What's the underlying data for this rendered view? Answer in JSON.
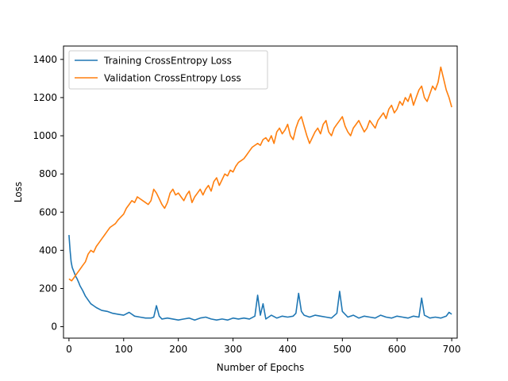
{
  "chart_data": {
    "type": "line",
    "title": "",
    "xlabel": "Number of Epochs",
    "ylabel": "Loss",
    "xlim": [
      -10,
      710
    ],
    "ylim": [
      -60,
      1470
    ],
    "xticks": [
      0,
      100,
      200,
      300,
      400,
      500,
      600,
      700
    ],
    "yticks": [
      0,
      200,
      400,
      600,
      800,
      1000,
      1200,
      1400
    ],
    "grid": false,
    "legend_position": "upper-left",
    "series": [
      {
        "name": "Training CrossEntropy Loss",
        "color": "#1f77b4",
        "points": [
          [
            0,
            480
          ],
          [
            2,
            400
          ],
          [
            4,
            340
          ],
          [
            6,
            310
          ],
          [
            8,
            295
          ],
          [
            10,
            280
          ],
          [
            12,
            265
          ],
          [
            15,
            250
          ],
          [
            18,
            230
          ],
          [
            20,
            215
          ],
          [
            25,
            190
          ],
          [
            30,
            160
          ],
          [
            35,
            140
          ],
          [
            40,
            120
          ],
          [
            45,
            110
          ],
          [
            50,
            100
          ],
          [
            60,
            85
          ],
          [
            70,
            80
          ],
          [
            80,
            70
          ],
          [
            90,
            65
          ],
          [
            100,
            60
          ],
          [
            110,
            75
          ],
          [
            120,
            55
          ],
          [
            130,
            50
          ],
          [
            140,
            45
          ],
          [
            150,
            45
          ],
          [
            155,
            50
          ],
          [
            160,
            110
          ],
          [
            165,
            55
          ],
          [
            170,
            40
          ],
          [
            180,
            45
          ],
          [
            190,
            40
          ],
          [
            200,
            35
          ],
          [
            210,
            40
          ],
          [
            220,
            45
          ],
          [
            230,
            35
          ],
          [
            240,
            45
          ],
          [
            250,
            50
          ],
          [
            260,
            40
          ],
          [
            270,
            35
          ],
          [
            280,
            40
          ],
          [
            290,
            35
          ],
          [
            300,
            45
          ],
          [
            310,
            40
          ],
          [
            320,
            45
          ],
          [
            330,
            40
          ],
          [
            340,
            55
          ],
          [
            345,
            165
          ],
          [
            350,
            60
          ],
          [
            355,
            120
          ],
          [
            360,
            40
          ],
          [
            370,
            60
          ],
          [
            380,
            45
          ],
          [
            390,
            55
          ],
          [
            400,
            50
          ],
          [
            410,
            55
          ],
          [
            415,
            70
          ],
          [
            420,
            175
          ],
          [
            425,
            80
          ],
          [
            430,
            60
          ],
          [
            440,
            50
          ],
          [
            450,
            60
          ],
          [
            460,
            55
          ],
          [
            470,
            50
          ],
          [
            480,
            45
          ],
          [
            490,
            70
          ],
          [
            495,
            185
          ],
          [
            500,
            80
          ],
          [
            510,
            50
          ],
          [
            520,
            60
          ],
          [
            530,
            45
          ],
          [
            540,
            55
          ],
          [
            550,
            50
          ],
          [
            560,
            45
          ],
          [
            570,
            60
          ],
          [
            580,
            50
          ],
          [
            590,
            45
          ],
          [
            600,
            55
          ],
          [
            610,
            50
          ],
          [
            620,
            45
          ],
          [
            630,
            55
          ],
          [
            640,
            50
          ],
          [
            645,
            150
          ],
          [
            650,
            60
          ],
          [
            660,
            45
          ],
          [
            670,
            50
          ],
          [
            680,
            45
          ],
          [
            690,
            55
          ],
          [
            695,
            75
          ],
          [
            700,
            65
          ]
        ]
      },
      {
        "name": "Validation CrossEntropy Loss",
        "color": "#ff7f0e",
        "points": [
          [
            0,
            250
          ],
          [
            5,
            240
          ],
          [
            10,
            260
          ],
          [
            15,
            280
          ],
          [
            20,
            300
          ],
          [
            25,
            320
          ],
          [
            30,
            340
          ],
          [
            35,
            380
          ],
          [
            40,
            400
          ],
          [
            45,
            390
          ],
          [
            50,
            420
          ],
          [
            55,
            440
          ],
          [
            60,
            460
          ],
          [
            65,
            480
          ],
          [
            70,
            500
          ],
          [
            75,
            520
          ],
          [
            80,
            530
          ],
          [
            85,
            540
          ],
          [
            90,
            560
          ],
          [
            95,
            575
          ],
          [
            100,
            590
          ],
          [
            105,
            620
          ],
          [
            110,
            640
          ],
          [
            115,
            660
          ],
          [
            120,
            650
          ],
          [
            125,
            680
          ],
          [
            130,
            670
          ],
          [
            135,
            660
          ],
          [
            140,
            650
          ],
          [
            145,
            640
          ],
          [
            150,
            660
          ],
          [
            155,
            720
          ],
          [
            160,
            700
          ],
          [
            165,
            670
          ],
          [
            170,
            640
          ],
          [
            175,
            620
          ],
          [
            180,
            650
          ],
          [
            185,
            700
          ],
          [
            190,
            720
          ],
          [
            195,
            690
          ],
          [
            200,
            700
          ],
          [
            205,
            680
          ],
          [
            210,
            660
          ],
          [
            215,
            690
          ],
          [
            220,
            710
          ],
          [
            225,
            650
          ],
          [
            230,
            680
          ],
          [
            235,
            700
          ],
          [
            240,
            720
          ],
          [
            245,
            690
          ],
          [
            250,
            720
          ],
          [
            255,
            740
          ],
          [
            260,
            710
          ],
          [
            265,
            760
          ],
          [
            270,
            780
          ],
          [
            275,
            740
          ],
          [
            280,
            770
          ],
          [
            285,
            800
          ],
          [
            290,
            790
          ],
          [
            295,
            820
          ],
          [
            300,
            810
          ],
          [
            305,
            840
          ],
          [
            310,
            860
          ],
          [
            315,
            870
          ],
          [
            320,
            880
          ],
          [
            325,
            900
          ],
          [
            330,
            920
          ],
          [
            335,
            940
          ],
          [
            340,
            950
          ],
          [
            345,
            960
          ],
          [
            350,
            950
          ],
          [
            355,
            980
          ],
          [
            360,
            990
          ],
          [
            365,
            970
          ],
          [
            370,
            1000
          ],
          [
            375,
            960
          ],
          [
            380,
            1020
          ],
          [
            385,
            1040
          ],
          [
            390,
            1010
          ],
          [
            395,
            1030
          ],
          [
            400,
            1060
          ],
          [
            405,
            1000
          ],
          [
            410,
            980
          ],
          [
            415,
            1040
          ],
          [
            420,
            1080
          ],
          [
            425,
            1100
          ],
          [
            430,
            1050
          ],
          [
            435,
            1000
          ],
          [
            440,
            960
          ],
          [
            445,
            990
          ],
          [
            450,
            1020
          ],
          [
            455,
            1040
          ],
          [
            460,
            1010
          ],
          [
            465,
            1060
          ],
          [
            470,
            1080
          ],
          [
            475,
            1020
          ],
          [
            480,
            1000
          ],
          [
            485,
            1040
          ],
          [
            490,
            1060
          ],
          [
            495,
            1080
          ],
          [
            500,
            1100
          ],
          [
            505,
            1050
          ],
          [
            510,
            1020
          ],
          [
            515,
            1000
          ],
          [
            520,
            1040
          ],
          [
            525,
            1060
          ],
          [
            530,
            1080
          ],
          [
            535,
            1050
          ],
          [
            540,
            1020
          ],
          [
            545,
            1040
          ],
          [
            550,
            1080
          ],
          [
            555,
            1060
          ],
          [
            560,
            1040
          ],
          [
            565,
            1080
          ],
          [
            570,
            1100
          ],
          [
            575,
            1120
          ],
          [
            580,
            1090
          ],
          [
            585,
            1140
          ],
          [
            590,
            1160
          ],
          [
            595,
            1120
          ],
          [
            600,
            1140
          ],
          [
            605,
            1180
          ],
          [
            610,
            1160
          ],
          [
            615,
            1200
          ],
          [
            620,
            1180
          ],
          [
            625,
            1220
          ],
          [
            630,
            1160
          ],
          [
            635,
            1200
          ],
          [
            640,
            1240
          ],
          [
            645,
            1260
          ],
          [
            650,
            1200
          ],
          [
            655,
            1180
          ],
          [
            660,
            1220
          ],
          [
            665,
            1260
          ],
          [
            670,
            1240
          ],
          [
            675,
            1280
          ],
          [
            680,
            1360
          ],
          [
            685,
            1300
          ],
          [
            690,
            1240
          ],
          [
            695,
            1200
          ],
          [
            700,
            1150
          ]
        ]
      }
    ]
  }
}
